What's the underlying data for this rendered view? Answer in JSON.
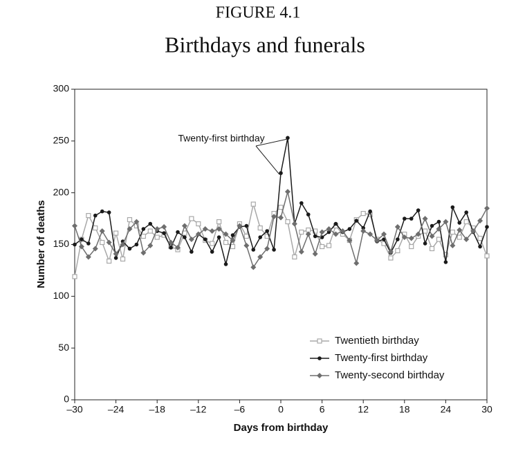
{
  "chart_data": {
    "type": "line",
    "figure_label": "FIGURE 4.1",
    "title": "Birthdays and funerals",
    "x_label": "Days from birthday",
    "y_label": "Number of deaths",
    "annotations": [
      {
        "text": "Twenty-first birthday"
      }
    ],
    "x": [
      -30,
      -29,
      -28,
      -27,
      -26,
      -25,
      -24,
      -23,
      -22,
      -21,
      -20,
      -19,
      -18,
      -17,
      -16,
      -15,
      -14,
      -13,
      -12,
      -11,
      -10,
      -9,
      -8,
      -7,
      -6,
      -5,
      -4,
      -3,
      -2,
      -1,
      0,
      1,
      2,
      3,
      4,
      5,
      6,
      7,
      8,
      9,
      10,
      11,
      12,
      13,
      14,
      15,
      16,
      17,
      18,
      19,
      20,
      21,
      22,
      23,
      24,
      25,
      26,
      27,
      28,
      29,
      30
    ],
    "series": [
      {
        "name": "Twentieth birthday",
        "color": "#a8a8a8",
        "marker": "square",
        "values": [
          119,
          155,
          178,
          166,
          152,
          134,
          161,
          136,
          174,
          168,
          158,
          163,
          157,
          159,
          148,
          145,
          161,
          175,
          170,
          154,
          151,
          172,
          152,
          148,
          170,
          158,
          189,
          166,
          158,
          180,
          186,
          172,
          138,
          162,
          164,
          163,
          148,
          149,
          168,
          160,
          154,
          174,
          180,
          179,
          155,
          151,
          137,
          144,
          160,
          148,
          158,
          163,
          146,
          155,
          140,
          162,
          157,
          172,
          166,
          156,
          139
        ]
      },
      {
        "name": "Twenty-first birthday",
        "color": "#1a1a1a",
        "marker": "circle",
        "values": [
          150,
          155,
          151,
          178,
          182,
          181,
          137,
          153,
          146,
          150,
          165,
          170,
          163,
          161,
          147,
          162,
          157,
          143,
          160,
          155,
          143,
          157,
          131,
          159,
          167,
          168,
          145,
          157,
          163,
          145,
          219,
          253,
          170,
          190,
          179,
          158,
          157,
          162,
          170,
          162,
          165,
          173,
          166,
          182,
          153,
          155,
          142,
          155,
          175,
          175,
          183,
          151,
          168,
          172,
          133,
          186,
          171,
          181,
          162,
          148,
          167
        ]
      },
      {
        "name": "Twenty-second birthday",
        "color": "#6e6e6e",
        "marker": "diamond",
        "values": [
          168,
          148,
          138,
          146,
          163,
          152,
          141,
          150,
          165,
          172,
          142,
          149,
          165,
          167,
          152,
          147,
          168,
          155,
          160,
          165,
          163,
          165,
          160,
          154,
          168,
          149,
          128,
          138,
          146,
          177,
          176,
          201,
          170,
          143,
          160,
          141,
          162,
          165,
          160,
          163,
          154,
          132,
          163,
          160,
          154,
          160,
          143,
          167,
          157,
          156,
          160,
          175,
          158,
          165,
          172,
          149,
          164,
          155,
          163,
          173,
          185
        ]
      }
    ],
    "xlim": [
      -30,
      30
    ],
    "xticks": [
      {
        "value": -30,
        "label": "–30"
      },
      {
        "value": -24,
        "label": "–24"
      },
      {
        "value": -18,
        "label": "–18"
      },
      {
        "value": -12,
        "label": "–12"
      },
      {
        "value": -6,
        "label": "–6"
      },
      0,
      6,
      12,
      18,
      24,
      30
    ],
    "ylim": [
      0,
      300
    ],
    "yticks": [
      0,
      50,
      100,
      150,
      200,
      250,
      300
    ],
    "grid": false,
    "legend": "lower right"
  }
}
